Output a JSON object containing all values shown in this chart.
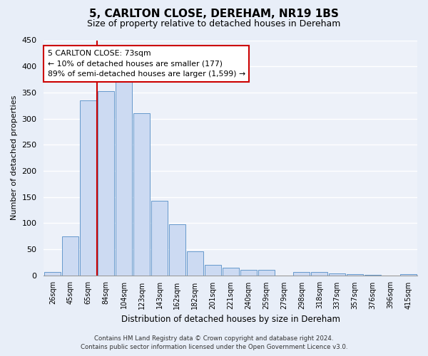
{
  "title": "5, CARLTON CLOSE, DEREHAM, NR19 1BS",
  "subtitle": "Size of property relative to detached houses in Dereham",
  "bar_labels": [
    "26sqm",
    "45sqm",
    "65sqm",
    "84sqm",
    "104sqm",
    "123sqm",
    "143sqm",
    "162sqm",
    "182sqm",
    "201sqm",
    "221sqm",
    "240sqm",
    "259sqm",
    "279sqm",
    "298sqm",
    "318sqm",
    "337sqm",
    "357sqm",
    "376sqm",
    "396sqm",
    "415sqm"
  ],
  "bar_values": [
    7,
    75,
    335,
    353,
    370,
    310,
    142,
    98,
    46,
    20,
    14,
    11,
    10,
    0,
    6,
    6,
    4,
    2,
    1,
    0,
    2
  ],
  "bar_color": "#ccdaf2",
  "bar_edge_color": "#6699cc",
  "vline_color": "#cc0000",
  "vline_pos": 2.5,
  "ylabel": "Number of detached properties",
  "xlabel": "Distribution of detached houses by size in Dereham",
  "ylim": [
    0,
    450
  ],
  "yticks": [
    0,
    50,
    100,
    150,
    200,
    250,
    300,
    350,
    400,
    450
  ],
  "annotation_title": "5 CARLTON CLOSE: 73sqm",
  "annotation_line1": "← 10% of detached houses are smaller (177)",
  "annotation_line2": "89% of semi-detached houses are larger (1,599) →",
  "annotation_box_color": "#cc0000",
  "footer_line1": "Contains HM Land Registry data © Crown copyright and database right 2024.",
  "footer_line2": "Contains public sector information licensed under the Open Government Licence v3.0.",
  "bg_color": "#e8eef8",
  "plot_bg_color": "#edf1f9",
  "grid_color": "#ffffff",
  "title_fontsize": 11,
  "subtitle_fontsize": 9
}
